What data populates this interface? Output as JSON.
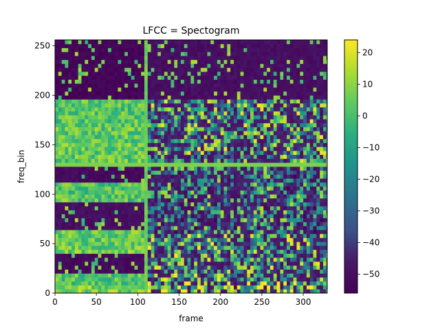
{
  "chart_data": {
    "type": "heatmap",
    "title": "LFCC = Spectogram",
    "xlabel": "frame",
    "ylabel": "freq_bin",
    "xlim": [
      0,
      329
    ],
    "ylim": [
      0,
      256
    ],
    "x_ticks": [
      0,
      50,
      100,
      150,
      200,
      250,
      300
    ],
    "y_ticks": [
      0,
      50,
      100,
      150,
      200,
      250
    ],
    "x_tick_labels": [
      "0",
      "50",
      "100",
      "150",
      "200",
      "250",
      "300"
    ],
    "y_tick_labels": [
      "0",
      "50",
      "100",
      "150",
      "200",
      "250"
    ],
    "colormap": "viridis",
    "color_range": [
      -56,
      24
    ],
    "colorbar_ticks": [
      20,
      10,
      0,
      -10,
      -20,
      -30,
      -40,
      -50
    ],
    "colorbar_tick_labels": [
      "20",
      "10",
      "0",
      "−10",
      "−20",
      "−30",
      "−40",
      "−50"
    ],
    "grid": false,
    "notes_visible": "dense spectrogram texture; values between about -56 and 24",
    "regions": [
      {
        "frames": [
          0,
          110
        ],
        "bins": [
          0,
          8
        ],
        "level": 8
      },
      {
        "frames": [
          0,
          110
        ],
        "bins": [
          8,
          18
        ],
        "level": 2
      },
      {
        "frames": [
          0,
          110
        ],
        "bins": [
          18,
          38
        ],
        "level": -52
      },
      {
        "frames": [
          0,
          110
        ],
        "bins": [
          38,
          62
        ],
        "level": 5
      },
      {
        "frames": [
          0,
          110
        ],
        "bins": [
          62,
          90
        ],
        "level": -50
      },
      {
        "frames": [
          0,
          110
        ],
        "bins": [
          90,
          110
        ],
        "level": 2
      },
      {
        "frames": [
          0,
          110
        ],
        "bins": [
          110,
          128
        ],
        "level": -52
      },
      {
        "frames": [
          0,
          110
        ],
        "bins": [
          128,
          165
        ],
        "level": 4
      },
      {
        "frames": [
          0,
          110
        ],
        "bins": [
          165,
          195
        ],
        "level": 2
      },
      {
        "frames": [
          0,
          110
        ],
        "bins": [
          195,
          256
        ],
        "level": -54
      },
      {
        "frames": [
          110,
          330
        ],
        "bins": [
          0,
          10
        ],
        "level": 5
      },
      {
        "frames": [
          110,
          330
        ],
        "bins": [
          10,
          60
        ],
        "level": -10
      },
      {
        "frames": [
          110,
          330
        ],
        "bins": [
          60,
          130
        ],
        "level": -20
      },
      {
        "frames": [
          110,
          330
        ],
        "bins": [
          130,
          195
        ],
        "level": -12
      },
      {
        "frames": [
          110,
          330
        ],
        "bins": [
          195,
          256
        ],
        "level": -50
      }
    ]
  }
}
